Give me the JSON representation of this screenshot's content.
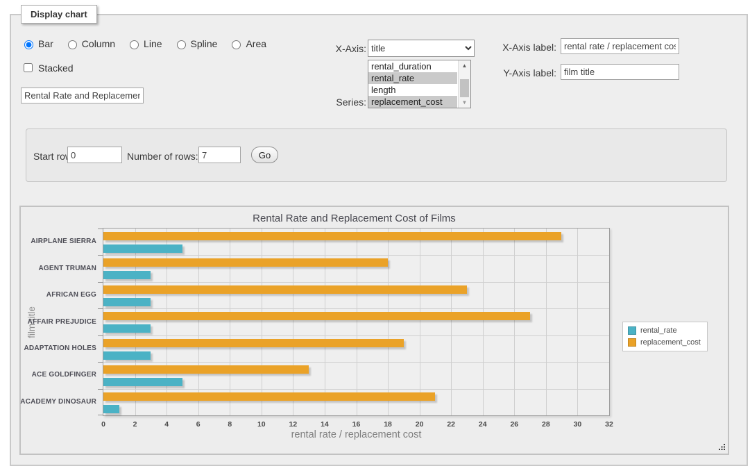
{
  "header": {
    "legend": "Display chart"
  },
  "controls": {
    "chart_types": {
      "options": [
        "Bar",
        "Column",
        "Line",
        "Spline",
        "Area"
      ],
      "selected": "Bar"
    },
    "stacked": {
      "label": "Stacked",
      "checked": false
    },
    "chart_title_input": {
      "value": "Rental Rate and Replacement Cost of Films"
    },
    "x_axis": {
      "label": "X-Axis:",
      "selected": "title"
    },
    "series_select": {
      "label": "Series:",
      "options": [
        {
          "name": "rental_duration",
          "selected": false
        },
        {
          "name": "rental_rate",
          "selected": true
        },
        {
          "name": "length",
          "selected": false
        },
        {
          "name": "replacement_cost",
          "selected": true
        }
      ]
    },
    "x_axis_label": {
      "label": "X-Axis label:",
      "value": "rental rate / replacement cost"
    },
    "y_axis_label": {
      "label": "Y-Axis label:",
      "value": "film title"
    },
    "pager": {
      "start_row": {
        "label": "Start row:",
        "value": "0"
      },
      "num_rows": {
        "label": "Number of rows:",
        "value": "7"
      },
      "go": "Go"
    }
  },
  "chart_data": {
    "type": "bar",
    "orientation": "horizontal",
    "title": "Rental Rate and Replacement Cost of Films",
    "categories": [
      "AIRPLANE SIERRA",
      "AGENT TRUMAN",
      "AFRICAN EGG",
      "AFFAIR PREJUDICE",
      "ADAPTATION HOLES",
      "ACE GOLDFINGER",
      "ACADEMY DINOSAUR"
    ],
    "series": [
      {
        "name": "rental_rate",
        "color": "#4bb2c5",
        "values": [
          4.99,
          2.99,
          2.99,
          2.99,
          2.99,
          4.99,
          0.99
        ]
      },
      {
        "name": "replacement_cost",
        "color": "#eaa228",
        "values": [
          28.99,
          17.99,
          22.99,
          26.99,
          18.99,
          12.99,
          20.99
        ]
      }
    ],
    "xlabel": "rental rate / replacement cost",
    "ylabel": "film title",
    "xlim": [
      0,
      32
    ],
    "xticks": [
      0,
      2,
      4,
      6,
      8,
      10,
      12,
      14,
      16,
      18,
      20,
      22,
      24,
      26,
      28,
      30,
      32
    ],
    "grid": true,
    "legend_position": "right"
  }
}
